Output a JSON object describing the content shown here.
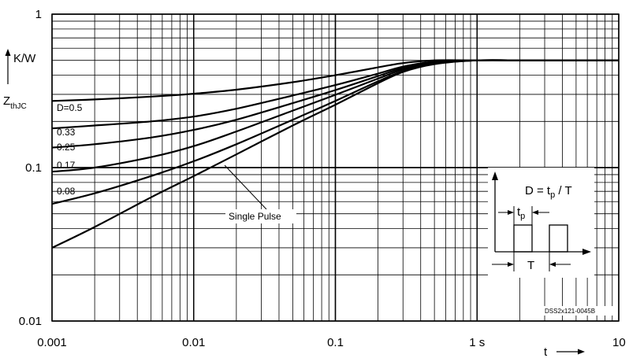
{
  "chart_data": {
    "type": "line",
    "x_scale": "log",
    "y_scale": "log",
    "xlim": [
      0.001,
      10
    ],
    "ylim": [
      0.01,
      1
    ],
    "grid": true,
    "x_tick_labels": [
      "0.001",
      "0.01",
      "0.1",
      "1 s",
      "10"
    ],
    "y_tick_labels": [
      "0.01",
      "0.1",
      "1"
    ],
    "xlabel": "t",
    "ylabel": "Z",
    "ylabel_sub": "thJC",
    "yunit": "K/W",
    "series": [
      {
        "name": "D=0.5",
        "x": [
          0.001,
          0.002,
          0.005,
          0.01,
          0.02,
          0.05,
          0.1,
          0.2,
          0.3,
          0.5,
          1,
          2,
          3,
          5,
          10
        ],
        "y": [
          0.272,
          0.278,
          0.29,
          0.303,
          0.322,
          0.36,
          0.4,
          0.45,
          0.48,
          0.5,
          0.5,
          0.5,
          0.5,
          0.5,
          0.5
        ]
      },
      {
        "name": "0.33",
        "x": [
          0.001,
          0.002,
          0.005,
          0.01,
          0.02,
          0.05,
          0.1,
          0.2,
          0.3,
          0.5,
          1,
          2,
          3,
          5,
          10
        ],
        "y": [
          0.18,
          0.188,
          0.2,
          0.215,
          0.242,
          0.295,
          0.345,
          0.41,
          0.455,
          0.49,
          0.5,
          0.5,
          0.5,
          0.5,
          0.5
        ]
      },
      {
        "name": "0.25",
        "x": [
          0.001,
          0.002,
          0.005,
          0.01,
          0.02,
          0.05,
          0.1,
          0.2,
          0.3,
          0.5,
          1,
          2,
          3,
          5,
          10
        ],
        "y": [
          0.135,
          0.142,
          0.157,
          0.176,
          0.205,
          0.263,
          0.32,
          0.395,
          0.445,
          0.485,
          0.5,
          0.5,
          0.5,
          0.5,
          0.5
        ]
      },
      {
        "name": "0.17",
        "x": [
          0.001,
          0.002,
          0.005,
          0.01,
          0.02,
          0.05,
          0.1,
          0.2,
          0.3,
          0.5,
          1,
          2,
          3,
          5,
          10
        ],
        "y": [
          0.094,
          0.1,
          0.117,
          0.138,
          0.172,
          0.235,
          0.298,
          0.38,
          0.435,
          0.48,
          0.5,
          0.5,
          0.5,
          0.5,
          0.5
        ]
      },
      {
        "name": "0.08",
        "x": [
          0.001,
          0.002,
          0.005,
          0.01,
          0.02,
          0.05,
          0.1,
          0.2,
          0.3,
          0.5,
          1,
          2,
          3,
          5,
          10
        ],
        "y": [
          0.058,
          0.068,
          0.088,
          0.11,
          0.142,
          0.205,
          0.272,
          0.365,
          0.425,
          0.475,
          0.5,
          0.5,
          0.5,
          0.5,
          0.5
        ]
      },
      {
        "name": "Single Pulse",
        "x": [
          0.001,
          0.002,
          0.005,
          0.01,
          0.02,
          0.05,
          0.1,
          0.2,
          0.3,
          0.5,
          1,
          2,
          3,
          5,
          10
        ],
        "y": [
          0.03,
          0.041,
          0.064,
          0.088,
          0.122,
          0.188,
          0.257,
          0.355,
          0.42,
          0.472,
          0.5,
          0.5,
          0.5,
          0.5,
          0.5
        ]
      }
    ],
    "curve_labels": [
      "D=0.5",
      "0.33",
      "0.25",
      "0.17",
      "0.08",
      "Single Pulse"
    ],
    "inset": {
      "formula_main": "D = t",
      "formula_sub": "p",
      "formula_tail": " / T",
      "tp_label_main": "t",
      "tp_label_sub": "p",
      "T_label": "T"
    },
    "watermark": "DSS2x121-0045B"
  }
}
